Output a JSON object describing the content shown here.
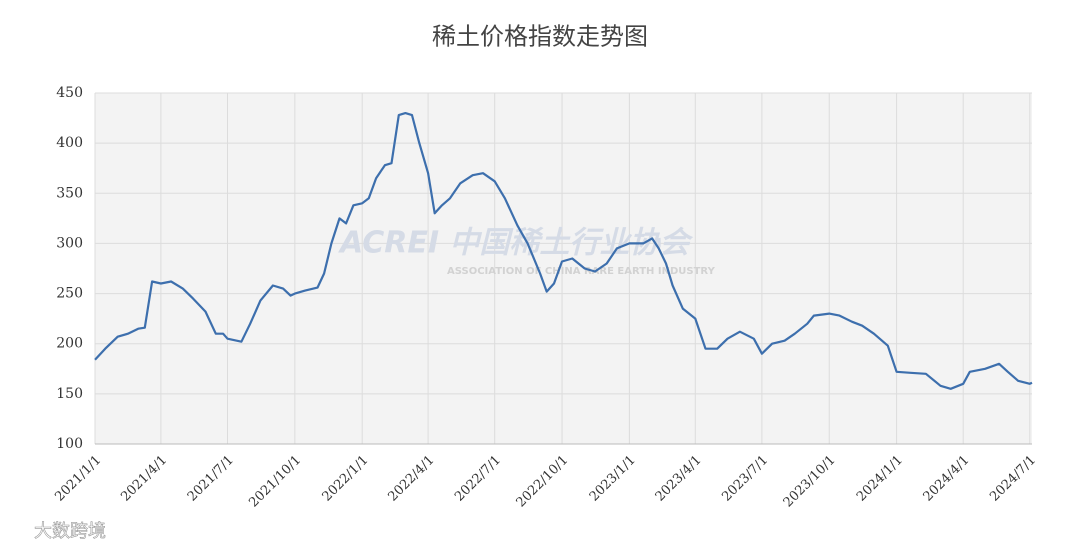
{
  "chart_data": {
    "type": "line",
    "title": "稀土价格指数走势图",
    "color": "#3d6fad",
    "annotations": [
      "ACREI 中国稀土行业协会",
      "ASSOCIATION OF CHINA RARE EARTH INDUSTRY",
      "大数跨境"
    ],
    "x": [
      "2021/1/1",
      "2021/1/15",
      "2021/2/1",
      "2021/2/15",
      "2021/3/1",
      "2021/3/10",
      "2021/3/20",
      "2021/4/1",
      "2021/4/15",
      "2021/5/1",
      "2021/5/15",
      "2021/6/1",
      "2021/6/15",
      "2021/6/25",
      "2021/7/1",
      "2021/7/20",
      "2021/8/1",
      "2021/8/15",
      "2021/9/1",
      "2021/9/15",
      "2021/9/25",
      "2021/10/1",
      "2021/10/15",
      "2021/11/1",
      "2021/11/10",
      "2021/11/20",
      "2021/12/1",
      "2021/12/10",
      "2021/12/20",
      "2022/1/1",
      "2022/1/10",
      "2022/1/20",
      "2022/2/1",
      "2022/2/10",
      "2022/2/20",
      "2022/3/1",
      "2022/3/10",
      "2022/3/20",
      "2022/4/1",
      "2022/4/10",
      "2022/4/20",
      "2022/5/1",
      "2022/5/15",
      "2022/6/1",
      "2022/6/15",
      "2022/7/1",
      "2022/7/15",
      "2022/8/1",
      "2022/8/15",
      "2022/9/1",
      "2022/9/10",
      "2022/9/20",
      "2022/10/1",
      "2022/10/15",
      "2022/11/1",
      "2022/11/15",
      "2022/12/1",
      "2022/12/15",
      "2023/1/1",
      "2023/1/20",
      "2023/2/1",
      "2023/2/10",
      "2023/2/20",
      "2023/3/1",
      "2023/3/15",
      "2023/4/1",
      "2023/4/15",
      "2023/5/1",
      "2023/5/15",
      "2023/6/1",
      "2023/6/20",
      "2023/7/1",
      "2023/7/15",
      "2023/8/1",
      "2023/8/15",
      "2023/9/1",
      "2023/9/10",
      "2023/10/1",
      "2023/10/15",
      "2023/11/1",
      "2023/11/15",
      "2023/12/1",
      "2023/12/20",
      "2024/1/1",
      "2024/1/20",
      "2024/2/10",
      "2024/3/1",
      "2024/3/15",
      "2024/4/1",
      "2024/4/10",
      "2024/5/1",
      "2024/5/20",
      "2024/6/1",
      "2024/6/15",
      "2024/7/1",
      "2024/7/4"
    ],
    "values": [
      184,
      195,
      207,
      210,
      215,
      216,
      262,
      260,
      262,
      255,
      245,
      232,
      210,
      210,
      205,
      202,
      220,
      243,
      258,
      255,
      248,
      250,
      253,
      256,
      270,
      300,
      325,
      320,
      338,
      340,
      345,
      365,
      378,
      380,
      428,
      430,
      428,
      400,
      370,
      330,
      338,
      345,
      360,
      368,
      370,
      362,
      345,
      318,
      300,
      270,
      252,
      260,
      282,
      285,
      275,
      272,
      280,
      295,
      300,
      300,
      305,
      295,
      280,
      258,
      235,
      225,
      195,
      195,
      205,
      212,
      205,
      190,
      200,
      203,
      210,
      220,
      228,
      230,
      228,
      222,
      218,
      210,
      198,
      172,
      171,
      170,
      158,
      155,
      160,
      172,
      175,
      180,
      172,
      163,
      160,
      161
    ],
    "xlim": [
      "2021/1/1",
      "2024/7/4"
    ],
    "xticks": [
      "2021/1/1",
      "2021/4/1",
      "2021/7/1",
      "2021/10/1",
      "2022/1/1",
      "2022/4/1",
      "2022/7/1",
      "2022/10/1",
      "2023/1/1",
      "2023/4/1",
      "2023/7/1",
      "2023/10/1",
      "2024/1/1",
      "2024/4/1",
      "2024/7/1"
    ],
    "ylim": [
      100,
      450
    ],
    "yticks": [
      100,
      150,
      200,
      250,
      300,
      350,
      400,
      450
    ],
    "grid": true
  }
}
